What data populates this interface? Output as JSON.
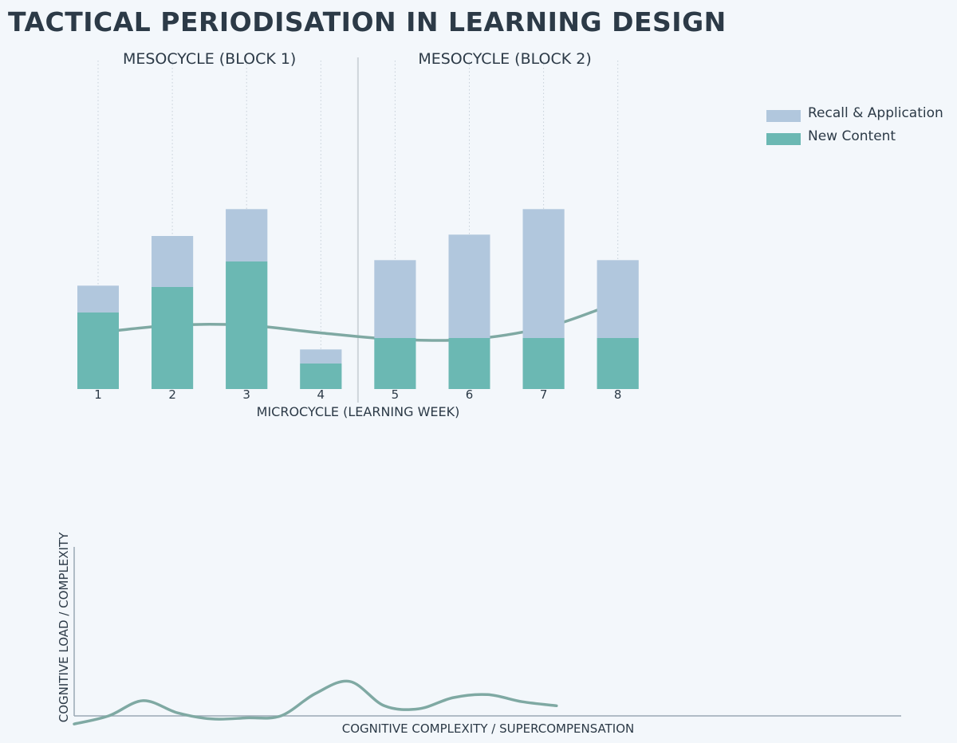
{
  "title": "TACTICAL PERIODISATION IN LEARNING DESIGN",
  "chart_data": [
    {
      "type": "bar",
      "stacked": true,
      "xlabel": "MICROCYCLE (LEARNING WEEK)",
      "categories": [
        "1",
        "2",
        "3",
        "4",
        "5",
        "6",
        "7",
        "8"
      ],
      "series": [
        {
          "name": "New Content",
          "color": "#6bb8b3",
          "values": [
            3.0,
            4.0,
            5.0,
            1.0,
            2.0,
            2.0,
            2.0,
            2.0
          ]
        },
        {
          "name": "Recall & Application",
          "color": "#b1c7dd",
          "values": [
            1.05,
            2.0,
            2.05,
            0.55,
            3.05,
            4.05,
            5.05,
            3.05
          ]
        }
      ],
      "trend": {
        "name": "trend",
        "color": "#7fa9a3",
        "values": [
          2.2,
          2.5,
          2.5,
          2.2,
          1.95,
          1.95,
          2.4,
          3.1
        ]
      },
      "blocks": [
        {
          "label": "MESOCYCLE (BLOCK 1)",
          "weeks": [
            1,
            4
          ]
        },
        {
          "label": "MESOCYCLE (BLOCK 2)",
          "weeks": [
            5,
            8
          ]
        }
      ],
      "ylim": [
        0,
        12.5
      ],
      "legend": "top-right"
    },
    {
      "type": "line",
      "xlabel": "COGNITIVE COMPLEXITY / SUPERCOMPENSATION",
      "ylabel": "COGNITIVE LOAD / COMPLEXITY",
      "xlim": [
        0,
        100
      ],
      "ylim": [
        -0.1,
        1.0
      ],
      "series": [
        {
          "name": "load",
          "color": "#7fa9a3",
          "x": [
            0,
            4,
            8,
            12,
            16,
            20,
            24,
            28,
            32,
            36,
            40,
            44,
            48,
            52,
            56
          ],
          "y": [
            -0.08,
            0.0,
            0.15,
            0.03,
            -0.03,
            -0.02,
            0.0,
            0.22,
            0.34,
            0.1,
            0.07,
            0.18,
            0.21,
            0.14,
            0.1
          ]
        }
      ]
    }
  ]
}
